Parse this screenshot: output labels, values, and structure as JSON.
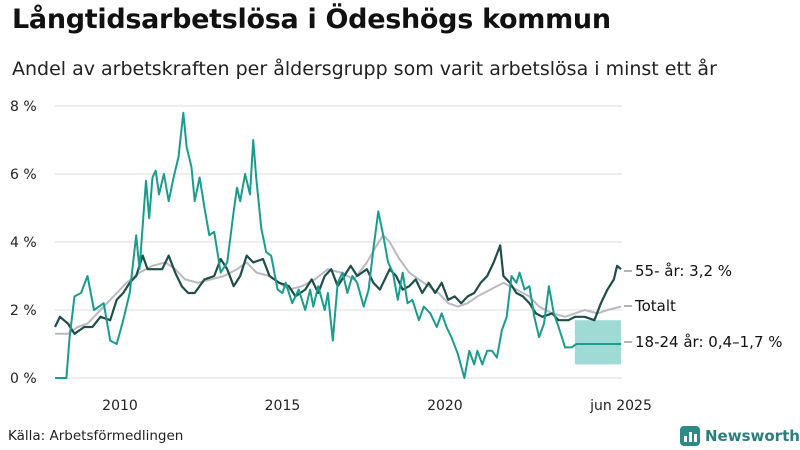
{
  "title": "Långtidsarbetslösa i Ödeshögs kommun",
  "subtitle": "Andel av arbetskraften per åldersgrupp som varit arbetslösa i minst ett år",
  "source": "Källa: Arbetsförmedlingen",
  "brand": "Newsworthy",
  "colors": {
    "age55": "#1f4d47",
    "total": "#b9b9c0",
    "age18_24": "#1a9c8c",
    "band": "#7fcfc6",
    "grid": "#dddddd"
  },
  "chart_data": {
    "type": "line",
    "x_unit": "year",
    "xlim": [
      2008.0,
      2025.45
    ],
    "ylim": [
      0,
      8
    ],
    "y_ticks": [
      0,
      2,
      4,
      6,
      8
    ],
    "y_tick_labels": [
      "0 %",
      "2 %",
      "4 %",
      "6 %",
      "8 %"
    ],
    "x_ticks": [
      2010,
      2015,
      2020,
      2025.42
    ],
    "x_tick_labels": [
      "2010",
      "2015",
      "2020",
      "jun 2025"
    ],
    "grid": true,
    "series": [
      {
        "name": "Totalt",
        "label": "Totalt",
        "key": "total",
        "points": [
          [
            2008.0,
            1.3
          ],
          [
            2008.4,
            1.3
          ],
          [
            2008.7,
            1.5
          ],
          [
            2009.0,
            1.6
          ],
          [
            2009.4,
            2.0
          ],
          [
            2009.8,
            2.4
          ],
          [
            2010.2,
            2.8
          ],
          [
            2010.6,
            3.1
          ],
          [
            2011.0,
            3.3
          ],
          [
            2011.4,
            3.4
          ],
          [
            2011.7,
            3.2
          ],
          [
            2012.0,
            2.9
          ],
          [
            2012.4,
            2.8
          ],
          [
            2012.8,
            2.9
          ],
          [
            2013.2,
            3.0
          ],
          [
            2013.6,
            3.2
          ],
          [
            2013.9,
            3.4
          ],
          [
            2014.2,
            3.1
          ],
          [
            2014.6,
            3.0
          ],
          [
            2014.9,
            2.8
          ],
          [
            2015.2,
            2.6
          ],
          [
            2015.6,
            2.7
          ],
          [
            2016.0,
            2.9
          ],
          [
            2016.4,
            3.2
          ],
          [
            2016.8,
            3.1
          ],
          [
            2017.2,
            2.9
          ],
          [
            2017.6,
            3.4
          ],
          [
            2017.9,
            3.9
          ],
          [
            2018.1,
            4.2
          ],
          [
            2018.3,
            4.0
          ],
          [
            2018.6,
            3.5
          ],
          [
            2018.9,
            3.1
          ],
          [
            2019.2,
            2.9
          ],
          [
            2019.5,
            2.7
          ],
          [
            2019.8,
            2.5
          ],
          [
            2020.1,
            2.2
          ],
          [
            2020.4,
            2.1
          ],
          [
            2020.7,
            2.2
          ],
          [
            2021.0,
            2.4
          ],
          [
            2021.4,
            2.6
          ],
          [
            2021.8,
            2.8
          ],
          [
            2022.2,
            2.6
          ],
          [
            2022.6,
            2.4
          ],
          [
            2022.9,
            2.1
          ],
          [
            2023.3,
            1.9
          ],
          [
            2023.7,
            1.8
          ],
          [
            2024.0,
            1.9
          ],
          [
            2024.3,
            2.0
          ],
          [
            2024.7,
            1.9
          ],
          [
            2025.0,
            2.0
          ],
          [
            2025.42,
            2.1
          ]
        ]
      },
      {
        "name": "55- år",
        "label": "55- år: 3,2 %",
        "key": "age55",
        "points": [
          [
            2008.0,
            1.5
          ],
          [
            2008.15,
            1.8
          ],
          [
            2008.4,
            1.6
          ],
          [
            2008.6,
            1.3
          ],
          [
            2008.9,
            1.5
          ],
          [
            2009.15,
            1.5
          ],
          [
            2009.4,
            1.8
          ],
          [
            2009.7,
            1.7
          ],
          [
            2009.9,
            2.3
          ],
          [
            2010.1,
            2.5
          ],
          [
            2010.3,
            2.8
          ],
          [
            2010.5,
            3.0
          ],
          [
            2010.7,
            3.6
          ],
          [
            2010.85,
            3.2
          ],
          [
            2011.1,
            3.2
          ],
          [
            2011.3,
            3.2
          ],
          [
            2011.5,
            3.6
          ],
          [
            2011.7,
            3.1
          ],
          [
            2011.9,
            2.7
          ],
          [
            2012.1,
            2.5
          ],
          [
            2012.3,
            2.5
          ],
          [
            2012.6,
            2.9
          ],
          [
            2012.9,
            3.0
          ],
          [
            2013.1,
            3.5
          ],
          [
            2013.3,
            3.2
          ],
          [
            2013.5,
            2.7
          ],
          [
            2013.7,
            3.0
          ],
          [
            2013.9,
            3.6
          ],
          [
            2014.1,
            3.4
          ],
          [
            2014.4,
            3.5
          ],
          [
            2014.6,
            3.0
          ],
          [
            2014.9,
            2.8
          ],
          [
            2015.2,
            2.7
          ],
          [
            2015.4,
            2.4
          ],
          [
            2015.7,
            2.6
          ],
          [
            2015.9,
            2.9
          ],
          [
            2016.1,
            2.5
          ],
          [
            2016.3,
            3.0
          ],
          [
            2016.5,
            3.2
          ],
          [
            2016.7,
            2.7
          ],
          [
            2016.9,
            3.0
          ],
          [
            2017.1,
            3.3
          ],
          [
            2017.3,
            3.0
          ],
          [
            2017.6,
            3.2
          ],
          [
            2017.8,
            2.8
          ],
          [
            2018.0,
            2.6
          ],
          [
            2018.3,
            3.2
          ],
          [
            2018.5,
            3.0
          ],
          [
            2018.7,
            2.6
          ],
          [
            2018.9,
            2.7
          ],
          [
            2019.1,
            2.9
          ],
          [
            2019.3,
            2.5
          ],
          [
            2019.5,
            2.8
          ],
          [
            2019.7,
            2.5
          ],
          [
            2019.9,
            2.8
          ],
          [
            2020.1,
            2.3
          ],
          [
            2020.3,
            2.4
          ],
          [
            2020.5,
            2.2
          ],
          [
            2020.7,
            2.4
          ],
          [
            2020.9,
            2.5
          ],
          [
            2021.1,
            2.8
          ],
          [
            2021.3,
            3.0
          ],
          [
            2021.5,
            3.4
          ],
          [
            2021.7,
            3.9
          ],
          [
            2021.8,
            3.0
          ],
          [
            2022.0,
            2.8
          ],
          [
            2022.2,
            2.5
          ],
          [
            2022.4,
            2.4
          ],
          [
            2022.6,
            2.2
          ],
          [
            2022.8,
            1.9
          ],
          [
            2023.0,
            1.8
          ],
          [
            2023.3,
            1.9
          ],
          [
            2023.5,
            1.7
          ],
          [
            2023.8,
            1.7
          ],
          [
            2024.0,
            1.8
          ],
          [
            2024.3,
            1.8
          ],
          [
            2024.6,
            1.7
          ],
          [
            2024.8,
            2.2
          ],
          [
            2025.0,
            2.6
          ],
          [
            2025.2,
            2.9
          ],
          [
            2025.3,
            3.3
          ],
          [
            2025.42,
            3.2
          ]
        ]
      },
      {
        "name": "18-24 år",
        "label": "18-24 år: 0,4–1,7 %",
        "key": "age18_24",
        "points": [
          [
            2008.0,
            0.0
          ],
          [
            2008.35,
            0.0
          ],
          [
            2008.45,
            1.2
          ],
          [
            2008.6,
            2.4
          ],
          [
            2008.8,
            2.5
          ],
          [
            2009.0,
            3.0
          ],
          [
            2009.2,
            2.0
          ],
          [
            2009.5,
            2.2
          ],
          [
            2009.7,
            1.1
          ],
          [
            2009.9,
            1.0
          ],
          [
            2010.1,
            1.7
          ],
          [
            2010.3,
            2.5
          ],
          [
            2010.5,
            4.2
          ],
          [
            2010.6,
            3.2
          ],
          [
            2010.8,
            5.8
          ],
          [
            2010.9,
            4.7
          ],
          [
            2011.0,
            5.9
          ],
          [
            2011.1,
            6.1
          ],
          [
            2011.2,
            5.4
          ],
          [
            2011.35,
            6.0
          ],
          [
            2011.5,
            5.2
          ],
          [
            2011.65,
            5.9
          ],
          [
            2011.8,
            6.5
          ],
          [
            2011.95,
            7.8
          ],
          [
            2012.05,
            6.8
          ],
          [
            2012.2,
            6.2
          ],
          [
            2012.3,
            5.2
          ],
          [
            2012.45,
            5.9
          ],
          [
            2012.6,
            5.0
          ],
          [
            2012.75,
            4.2
          ],
          [
            2012.9,
            4.3
          ],
          [
            2013.1,
            3.1
          ],
          [
            2013.3,
            3.4
          ],
          [
            2013.5,
            4.9
          ],
          [
            2013.6,
            5.6
          ],
          [
            2013.7,
            5.2
          ],
          [
            2013.85,
            6.0
          ],
          [
            2014.0,
            5.4
          ],
          [
            2014.1,
            7.0
          ],
          [
            2014.2,
            5.8
          ],
          [
            2014.35,
            4.4
          ],
          [
            2014.5,
            3.7
          ],
          [
            2014.65,
            3.6
          ],
          [
            2014.85,
            2.6
          ],
          [
            2015.0,
            2.5
          ],
          [
            2015.1,
            2.8
          ],
          [
            2015.3,
            2.2
          ],
          [
            2015.5,
            2.6
          ],
          [
            2015.7,
            2.0
          ],
          [
            2015.85,
            2.6
          ],
          [
            2015.95,
            2.1
          ],
          [
            2016.1,
            2.7
          ],
          [
            2016.3,
            2.0
          ],
          [
            2016.4,
            2.5
          ],
          [
            2016.55,
            1.1
          ],
          [
            2016.7,
            2.8
          ],
          [
            2016.85,
            3.1
          ],
          [
            2017.0,
            2.5
          ],
          [
            2017.15,
            3.0
          ],
          [
            2017.3,
            2.8
          ],
          [
            2017.5,
            2.1
          ],
          [
            2017.65,
            2.6
          ],
          [
            2017.8,
            3.8
          ],
          [
            2017.95,
            4.9
          ],
          [
            2018.1,
            4.2
          ],
          [
            2018.25,
            3.4
          ],
          [
            2018.4,
            3.1
          ],
          [
            2018.55,
            2.3
          ],
          [
            2018.7,
            3.1
          ],
          [
            2018.85,
            2.2
          ],
          [
            2019.0,
            2.3
          ],
          [
            2019.2,
            1.7
          ],
          [
            2019.35,
            2.1
          ],
          [
            2019.55,
            1.9
          ],
          [
            2019.75,
            1.5
          ],
          [
            2019.9,
            1.9
          ],
          [
            2020.05,
            1.5
          ],
          [
            2020.2,
            1.2
          ],
          [
            2020.4,
            0.7
          ],
          [
            2020.6,
            0.0
          ],
          [
            2020.75,
            0.8
          ],
          [
            2020.9,
            0.4
          ],
          [
            2021.0,
            0.8
          ],
          [
            2021.15,
            0.4
          ],
          [
            2021.3,
            0.8
          ],
          [
            2021.45,
            0.8
          ],
          [
            2021.6,
            0.6
          ],
          [
            2021.75,
            1.4
          ],
          [
            2021.9,
            1.8
          ],
          [
            2022.05,
            3.0
          ],
          [
            2022.2,
            2.8
          ],
          [
            2022.3,
            3.1
          ],
          [
            2022.45,
            2.6
          ],
          [
            2022.6,
            2.7
          ],
          [
            2022.75,
            1.8
          ],
          [
            2022.9,
            1.2
          ],
          [
            2023.05,
            1.6
          ],
          [
            2023.2,
            2.7
          ],
          [
            2023.35,
            1.9
          ],
          [
            2023.5,
            1.5
          ],
          [
            2023.7,
            0.9
          ],
          [
            2023.9,
            0.9
          ],
          [
            2024.05,
            1.0
          ],
          [
            2024.3,
            1.0
          ],
          [
            2024.6,
            1.0
          ],
          [
            2024.9,
            1.0
          ],
          [
            2025.2,
            1.0
          ],
          [
            2025.42,
            1.0
          ]
        ]
      }
    ],
    "uncertainty_band": {
      "series": "18-24 år",
      "x": [
        2024.0,
        2025.42
      ],
      "low": 0.4,
      "high": 1.7
    }
  }
}
